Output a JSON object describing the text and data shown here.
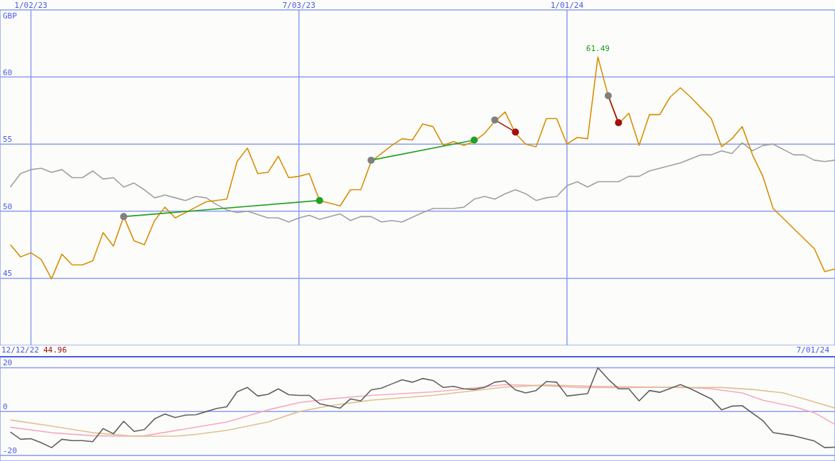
{
  "chart_data": [
    {
      "type": "line",
      "ylabel": "GBP",
      "xlim": [
        "2022-12-12",
        "2024-07-01"
      ],
      "xticks": [
        {
          "value": "2023-01-02",
          "label": "1/02/23"
        },
        {
          "value": "2023-07-03",
          "label": "7/03/23"
        },
        {
          "value": "2024-01-01",
          "label": "1/01/24"
        }
      ],
      "ylim": [
        40,
        65
      ],
      "yticks": [
        45,
        50,
        55,
        60
      ],
      "grid": true,
      "annotations": [
        {
          "text": "61.49",
          "x": "2024-01-22",
          "y": 61.49
        }
      ],
      "series": [
        {
          "color": "#a0a0a0",
          "x": [
            "2022-12-19",
            "2022-12-26",
            "2023-01-02",
            "2023-01-09",
            "2023-01-16",
            "2023-01-23",
            "2023-01-30",
            "2023-02-06",
            "2023-02-13",
            "2023-02-20",
            "2023-02-27",
            "2023-03-06",
            "2023-03-13",
            "2023-03-20",
            "2023-03-27",
            "2023-04-03",
            "2023-04-10",
            "2023-04-17",
            "2023-04-24",
            "2023-05-01",
            "2023-05-08",
            "2023-05-15",
            "2023-05-22",
            "2023-05-29",
            "2023-06-12",
            "2023-06-19",
            "2023-06-26",
            "2023-07-03",
            "2023-07-10",
            "2023-07-17",
            "2023-07-31",
            "2023-08-07",
            "2023-08-14",
            "2023-08-21",
            "2023-08-28",
            "2023-09-04",
            "2023-09-11",
            "2023-09-25",
            "2023-10-02",
            "2023-10-16",
            "2023-10-23",
            "2023-10-30",
            "2023-11-06",
            "2023-11-13",
            "2023-11-20",
            "2023-11-27",
            "2023-12-04",
            "2023-12-11",
            "2023-12-18",
            "2023-12-25",
            "2024-01-01",
            "2024-01-08",
            "2024-01-15",
            "2024-01-22",
            "2024-02-05",
            "2024-02-12",
            "2024-02-19",
            "2024-02-26",
            "2024-03-18",
            "2024-04-01",
            "2024-04-08",
            "2024-04-15",
            "2024-04-22",
            "2024-04-29",
            "2024-05-06",
            "2024-05-13",
            "2024-05-20",
            "2024-06-03",
            "2024-06-10",
            "2024-06-17",
            "2024-06-24",
            "2024-07-01"
          ],
          "values": [
            51.8,
            52.8,
            53.1,
            53.2,
            52.9,
            53.1,
            52.5,
            52.5,
            53.0,
            52.4,
            52.5,
            51.8,
            52.1,
            51.6,
            51.0,
            51.2,
            51.0,
            50.8,
            51.1,
            51.0,
            50.5,
            50.1,
            49.9,
            50.0,
            49.5,
            49.5,
            49.2,
            49.5,
            49.7,
            49.4,
            49.8,
            49.3,
            49.6,
            49.6,
            49.2,
            49.3,
            49.2,
            49.9,
            50.2,
            50.2,
            50.3,
            50.9,
            51.1,
            50.9,
            51.3,
            51.6,
            51.3,
            50.8,
            51.0,
            51.1,
            51.9,
            52.2,
            51.8,
            52.2,
            52.2,
            52.6,
            52.6,
            53.0,
            53.6,
            54.2,
            54.2,
            54.5,
            54.3,
            55.1,
            54.5,
            54.9,
            55.0,
            54.2,
            54.2,
            53.8,
            53.7,
            53.8
          ]
        },
        {
          "color": "#d98e04",
          "x": [
            "2022-12-19",
            "2022-12-26",
            "2023-01-02",
            "2023-01-09",
            "2023-01-16",
            "2023-01-23",
            "2023-01-30",
            "2023-02-06",
            "2023-02-13",
            "2023-02-20",
            "2023-02-27",
            "2023-03-06",
            "2023-03-13",
            "2023-03-20",
            "2023-03-27",
            "2023-04-03",
            "2023-04-10",
            "2023-04-17",
            "2023-04-24",
            "2023-05-01",
            "2023-05-15",
            "2023-05-22",
            "2023-05-29",
            "2023-06-05",
            "2023-06-12",
            "2023-06-19",
            "2023-06-26",
            "2023-07-03",
            "2023-07-10",
            "2023-07-17",
            "2023-07-31",
            "2023-08-07",
            "2023-08-14",
            "2023-08-21",
            "2023-09-04",
            "2023-09-11",
            "2023-09-18",
            "2023-09-25",
            "2023-10-02",
            "2023-10-09",
            "2023-10-16",
            "2023-10-23",
            "2023-10-30",
            "2023-11-06",
            "2023-11-13",
            "2023-11-20",
            "2023-11-27",
            "2023-12-04",
            "2023-12-11",
            "2023-12-18",
            "2023-12-25",
            "2024-01-01",
            "2024-01-08",
            "2024-01-15",
            "2024-01-22",
            "2024-01-29",
            "2024-02-05",
            "2024-02-12",
            "2024-02-19",
            "2024-02-26",
            "2024-03-04",
            "2024-03-11",
            "2024-03-18",
            "2024-03-25",
            "2024-04-01",
            "2024-04-08",
            "2024-04-15",
            "2024-04-22",
            "2024-04-29",
            "2024-05-06",
            "2024-05-13",
            "2024-05-20",
            "2024-06-17",
            "2024-06-24",
            "2024-07-01"
          ],
          "values": [
            47.5,
            46.6,
            46.9,
            46.4,
            44.96,
            46.8,
            46.0,
            46.0,
            46.3,
            48.4,
            47.4,
            49.6,
            47.8,
            47.5,
            49.3,
            50.3,
            49.5,
            49.9,
            50.3,
            50.7,
            50.9,
            53.7,
            54.7,
            52.8,
            52.9,
            54.1,
            52.5,
            52.6,
            52.8,
            50.8,
            50.4,
            51.6,
            51.6,
            53.7,
            54.9,
            55.4,
            55.3,
            56.5,
            56.3,
            54.9,
            55.2,
            54.9,
            55.2,
            55.8,
            56.7,
            57.4,
            55.8,
            55.0,
            54.8,
            56.9,
            56.9,
            55.0,
            55.5,
            55.4,
            61.49,
            58.6,
            56.5,
            57.3,
            54.9,
            57.2,
            57.2,
            58.5,
            59.2,
            58.5,
            57.7,
            56.9,
            54.8,
            55.4,
            56.3,
            54.2,
            52.6,
            50.2,
            47.2,
            45.5,
            45.7
          ]
        },
        {
          "color": "#22a022",
          "marker": "circle",
          "colors": [
            "#808080",
            "#22a022"
          ],
          "x": [
            "2023-03-06",
            "2023-07-17"
          ],
          "values": [
            49.6,
            50.8
          ]
        },
        {
          "color": "#22a022",
          "marker": "circle",
          "colors": [
            "#808080",
            "#22a022"
          ],
          "x": [
            "2023-08-21",
            "2023-10-30"
          ],
          "values": [
            53.8,
            55.3
          ]
        },
        {
          "color": "#a01010",
          "marker": "circle",
          "colors": [
            "#808080",
            "#a01010"
          ],
          "x": [
            "2023-11-13",
            "2023-11-27"
          ],
          "values": [
            56.8,
            55.9
          ]
        },
        {
          "color": "#a01010",
          "marker": "circle",
          "colors": [
            "#808080",
            "#a01010"
          ],
          "x": [
            "2024-01-29",
            "2024-02-05"
          ],
          "values": [
            58.6,
            56.6
          ]
        }
      ]
    },
    {
      "type": "line",
      "xlim": [
        "2022-12-12",
        "2024-07-01"
      ],
      "xticks": [
        {
          "value": "2023-01-02",
          "label": null
        },
        {
          "value": "2023-07-03",
          "label": null
        },
        {
          "value": "2024-01-01",
          "label": null
        }
      ],
      "ylim": [
        -22.5,
        25
      ],
      "yticks": [
        -20,
        0,
        20
      ],
      "grid": true,
      "tick_labels": "y",
      "annotations": [
        "12/12/22",
        "44.96",
        "7/01/24"
      ],
      "series": [
        {
          "color": "#f8a8c0",
          "x": [
            "2022-12-19",
            "2023-01-16",
            "2023-02-13",
            "2023-03-06",
            "2023-03-20",
            "2023-04-17",
            "2023-05-15",
            "2023-06-12",
            "2023-07-03",
            "2023-07-24",
            "2023-08-21",
            "2023-10-02",
            "2023-10-16",
            "2023-11-20",
            "2023-12-18",
            "2024-01-08",
            "2024-02-12",
            "2024-03-18",
            "2024-04-08",
            "2024-04-29",
            "2024-05-13",
            "2024-06-03",
            "2024-06-17",
            "2024-07-01"
          ],
          "values": [
            -7.1,
            -9.6,
            -11.0,
            -11.2,
            -11.0,
            -7.9,
            -4.7,
            0.8,
            4.1,
            5.8,
            7.4,
            9.0,
            9.8,
            12.3,
            11.8,
            11.0,
            11.0,
            11.2,
            10.4,
            8.5,
            5.2,
            2.2,
            -0.5,
            -5.8
          ]
        },
        {
          "color": "#e0c090",
          "x": [
            "2022-12-19",
            "2023-01-16",
            "2023-02-13",
            "2023-03-13",
            "2023-04-10",
            "2023-04-24",
            "2023-05-15",
            "2023-06-12",
            "2023-07-03",
            "2023-07-24",
            "2023-08-21",
            "2023-10-02",
            "2023-10-23",
            "2023-11-20",
            "2023-12-18",
            "2024-01-22",
            "2024-02-26",
            "2024-03-18",
            "2024-04-15",
            "2024-05-06",
            "2024-05-27",
            "2024-06-10",
            "2024-07-01"
          ],
          "values": [
            -3.8,
            -6.6,
            -9.6,
            -11.2,
            -11.2,
            -10.4,
            -8.5,
            -4.7,
            0,
            2.7,
            5.2,
            7.4,
            9.0,
            11.2,
            12.1,
            11.5,
            11.2,
            11.0,
            11.0,
            10.1,
            8.5,
            5.8,
            1.6
          ]
        },
        {
          "color": "#606060",
          "x": [
            "2022-12-19",
            "2022-12-26",
            "2023-01-02",
            "2023-01-09",
            "2023-01-16",
            "2023-01-23",
            "2023-01-30",
            "2023-02-06",
            "2023-02-13",
            "2023-02-20",
            "2023-02-27",
            "2023-03-06",
            "2023-03-13",
            "2023-03-20",
            "2023-03-27",
            "2023-04-03",
            "2023-04-10",
            "2023-04-17",
            "2023-04-24",
            "2023-05-01",
            "2023-05-08",
            "2023-05-15",
            "2023-05-22",
            "2023-05-29",
            "2023-06-05",
            "2023-06-12",
            "2023-06-19",
            "2023-06-26",
            "2023-07-03",
            "2023-07-10",
            "2023-07-17",
            "2023-07-31",
            "2023-08-07",
            "2023-08-14",
            "2023-08-21",
            "2023-08-28",
            "2023-09-04",
            "2023-09-11",
            "2023-09-18",
            "2023-09-25",
            "2023-10-02",
            "2023-10-09",
            "2023-10-16",
            "2023-10-23",
            "2023-10-30",
            "2023-11-06",
            "2023-11-13",
            "2023-11-20",
            "2023-11-27",
            "2023-12-04",
            "2023-12-11",
            "2023-12-18",
            "2023-12-25",
            "2024-01-01",
            "2024-01-15",
            "2024-01-22",
            "2024-01-29",
            "2024-02-05",
            "2024-02-12",
            "2024-02-19",
            "2024-02-26",
            "2024-03-04",
            "2024-03-18",
            "2024-03-25",
            "2024-04-08",
            "2024-04-15",
            "2024-04-22",
            "2024-04-29",
            "2024-05-13",
            "2024-05-20",
            "2024-06-03",
            "2024-06-17",
            "2024-06-24",
            "2024-07-01"
          ],
          "values": [
            -9.3,
            -12.6,
            -12.3,
            -14.2,
            -16.4,
            -12.6,
            -13.2,
            -13.2,
            -13.7,
            -7.7,
            -10.1,
            -4.4,
            -9.0,
            -8.2,
            -3.3,
            -1.1,
            -2.7,
            -1.6,
            -1.4,
            0,
            1.4,
            2.2,
            9.0,
            11.0,
            7.1,
            7.9,
            10.4,
            7.7,
            7.4,
            7.4,
            3.6,
            1.6,
            5.8,
            4.9,
            9.9,
            10.7,
            12.6,
            14.5,
            13.4,
            15.1,
            14.2,
            11.0,
            11.5,
            10.4,
            10.1,
            11.0,
            13.4,
            14.0,
            9.9,
            8.5,
            9.6,
            13.7,
            13.4,
            7.1,
            8.2,
            20.0,
            14.8,
            10.4,
            10.4,
            4.9,
            9.6,
            8.8,
            12.3,
            10.4,
            5.8,
            0.8,
            2.5,
            2.7,
            -4.1,
            -9.6,
            -11.0,
            -13.4,
            -16.4,
            -16.2
          ]
        }
      ]
    }
  ]
}
